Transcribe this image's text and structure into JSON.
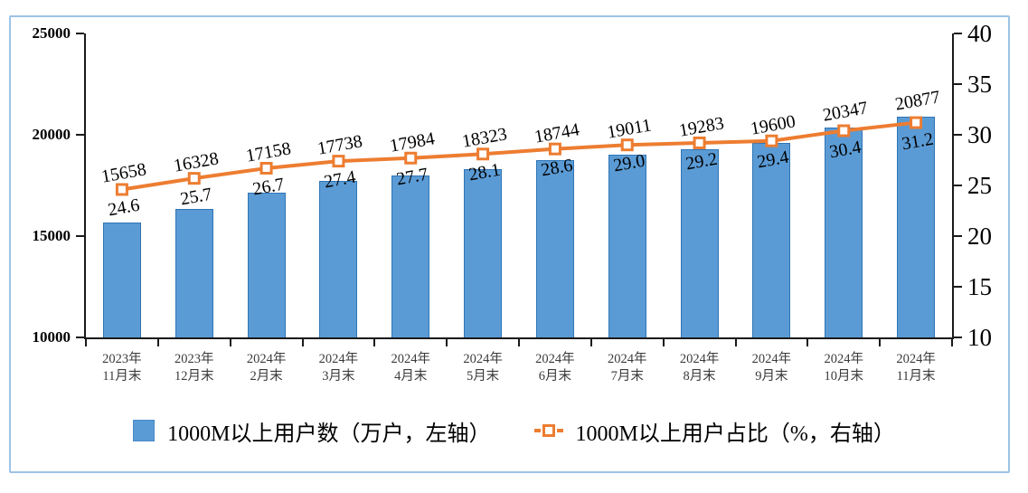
{
  "chart_data": {
    "type": "bar",
    "subtype": "combo-bar-line-dual-axis",
    "title": "",
    "categories": [
      [
        "2023年",
        "11月末"
      ],
      [
        "2023年",
        "12月末"
      ],
      [
        "2024年",
        "2月末"
      ],
      [
        "2024年",
        "3月末"
      ],
      [
        "2024年",
        "4月末"
      ],
      [
        "2024年",
        "5月末"
      ],
      [
        "2024年",
        "6月末"
      ],
      [
        "2024年",
        "7月末"
      ],
      [
        "2024年",
        "8月末"
      ],
      [
        "2024年",
        "9月末"
      ],
      [
        "2024年",
        "10月末"
      ],
      [
        "2024年",
        "11月末"
      ]
    ],
    "series": [
      {
        "name": "1000M以上用户数（万户，左轴）",
        "type": "bar",
        "axis": "left",
        "values": [
          15658,
          16328,
          17158,
          17738,
          17984,
          18323,
          18744,
          19011,
          19283,
          19600,
          20347,
          20877
        ],
        "labels": [
          "15658",
          "16328",
          "17158",
          "17738",
          "17984",
          "18323",
          "18744",
          "19011",
          "19283",
          "19600",
          "20347",
          "20877"
        ],
        "color": "#5B9BD5",
        "border_color": "#2E75B6"
      },
      {
        "name": "1000M以上用户占比（%，右轴）",
        "type": "line",
        "axis": "right",
        "values": [
          24.6,
          25.7,
          26.7,
          27.4,
          27.7,
          28.1,
          28.6,
          29.0,
          29.2,
          29.4,
          30.4,
          31.2
        ],
        "labels": [
          "24.6",
          "25.7",
          "26.7",
          "27.4",
          "27.7",
          "28.1",
          "28.6",
          "29.0",
          "29.2",
          "29.4",
          "30.4",
          "31.2"
        ],
        "color": "#ED7D31",
        "marker": "square-open"
      }
    ],
    "left_axis": {
      "min": 10000,
      "max": 25000,
      "ticks": [
        25000,
        20000,
        15000,
        10000
      ]
    },
    "right_axis": {
      "min": 10,
      "max": 40,
      "ticks": [
        40,
        35,
        30,
        25,
        20,
        15,
        10
      ]
    },
    "grid": "off",
    "legend_position": "bottom",
    "frame_color": "#9DC3E6",
    "axis_color": "#1a1a1a"
  }
}
